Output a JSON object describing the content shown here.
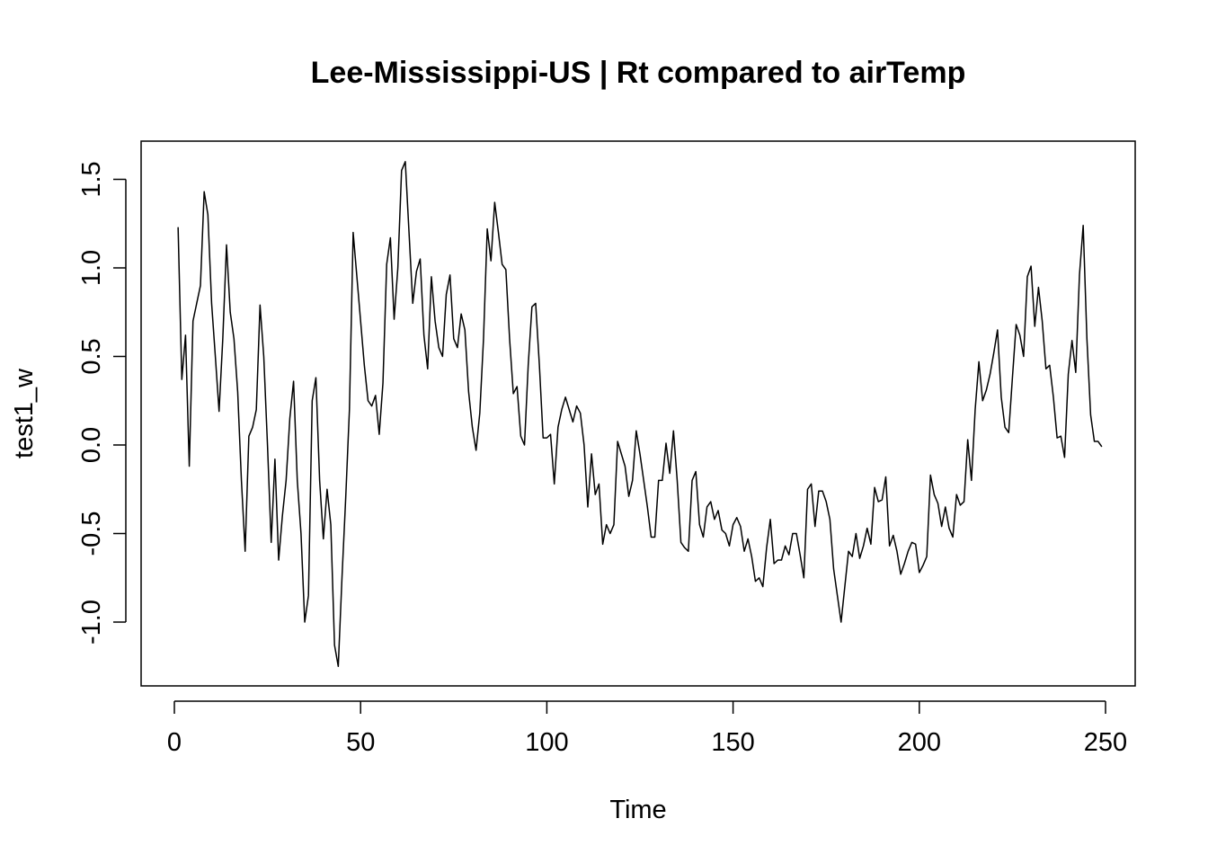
{
  "chart_data": {
    "type": "line",
    "title": "Lee-Mississippi-US | Rt compared to airTemp",
    "xlabel": "Time",
    "ylabel": "test1_w",
    "xlim": [
      1,
      248
    ],
    "ylim": [
      -1.25,
      1.6
    ],
    "xticks": [
      0,
      50,
      100,
      150,
      200,
      250
    ],
    "xtick_labels": [
      "0",
      "50",
      "100",
      "150",
      "200",
      "250"
    ],
    "yticks": [
      -1.0,
      -0.5,
      0.0,
      0.5,
      1.0,
      1.5
    ],
    "ytick_labels": [
      "-1.0",
      "-0.5",
      "0.0",
      "0.5",
      "1.0",
      "1.5"
    ],
    "grid": false,
    "legend": "none",
    "line_color": "#000000",
    "series": [
      {
        "x_start": 1,
        "x_step": 1,
        "values": [
          1.23,
          0.37,
          0.62,
          -0.12,
          0.7,
          0.8,
          0.9,
          1.43,
          1.3,
          0.8,
          0.5,
          0.19,
          0.6,
          1.13,
          0.75,
          0.6,
          0.3,
          -0.2,
          -0.6,
          0.05,
          0.1,
          0.2,
          0.79,
          0.5,
          0.0,
          -0.55,
          -0.08,
          -0.65,
          -0.4,
          -0.2,
          0.15,
          0.36,
          -0.2,
          -0.5,
          -1.0,
          -0.85,
          0.25,
          0.38,
          -0.2,
          -0.53,
          -0.25,
          -0.45,
          -1.13,
          -1.25,
          -0.75,
          -0.3,
          0.2,
          1.2,
          0.95,
          0.7,
          0.45,
          0.25,
          0.22,
          0.28,
          0.06,
          0.35,
          1.02,
          1.17,
          0.71,
          1.0,
          1.55,
          1.6,
          1.2,
          0.8,
          0.98,
          1.05,
          0.62,
          0.43,
          0.95,
          0.7,
          0.55,
          0.5,
          0.85,
          0.96,
          0.6,
          0.55,
          0.74,
          0.65,
          0.3,
          0.1,
          -0.03,
          0.18,
          0.6,
          1.22,
          1.04,
          1.37,
          1.2,
          1.02,
          0.99,
          0.6,
          0.29,
          0.33,
          0.05,
          0.0,
          0.45,
          0.78,
          0.8,
          0.45,
          0.04,
          0.04,
          0.06,
          -0.22,
          0.1,
          0.2,
          0.27,
          0.2,
          0.13,
          0.22,
          0.18,
          0.0,
          -0.35,
          -0.05,
          -0.28,
          -0.22,
          -0.56,
          -0.45,
          -0.5,
          -0.45,
          0.02,
          -0.05,
          -0.12,
          -0.29,
          -0.2,
          0.08,
          -0.05,
          -0.2,
          -0.35,
          -0.52,
          -0.52,
          -0.2,
          -0.2,
          0.01,
          -0.16,
          0.08,
          -0.2,
          -0.55,
          -0.58,
          -0.6,
          -0.2,
          -0.15,
          -0.45,
          -0.52,
          -0.35,
          -0.32,
          -0.42,
          -0.37,
          -0.48,
          -0.5,
          -0.57,
          -0.45,
          -0.41,
          -0.46,
          -0.6,
          -0.53,
          -0.63,
          -0.77,
          -0.75,
          -0.8,
          -0.58,
          -0.42,
          -0.67,
          -0.65,
          -0.65,
          -0.57,
          -0.62,
          -0.5,
          -0.5,
          -0.62,
          -0.75,
          -0.25,
          -0.22,
          -0.46,
          -0.26,
          -0.26,
          -0.32,
          -0.42,
          -0.7,
          -0.85,
          -1.0,
          -0.8,
          -0.6,
          -0.63,
          -0.5,
          -0.64,
          -0.57,
          -0.47,
          -0.56,
          -0.24,
          -0.32,
          -0.31,
          -0.18,
          -0.57,
          -0.51,
          -0.6,
          -0.73,
          -0.67,
          -0.6,
          -0.55,
          -0.56,
          -0.72,
          -0.68,
          -0.63,
          -0.17,
          -0.28,
          -0.33,
          -0.46,
          -0.35,
          -0.47,
          -0.52,
          -0.28,
          -0.34,
          -0.32,
          0.03,
          -0.2,
          0.2,
          0.47,
          0.25,
          0.31,
          0.4,
          0.52,
          0.65,
          0.27,
          0.1,
          0.07,
          0.38,
          0.68,
          0.62,
          0.5,
          0.95,
          1.01,
          0.67,
          0.89,
          0.7,
          0.43,
          0.45,
          0.27,
          0.04,
          0.05,
          -0.07,
          0.4,
          0.59,
          0.41,
          0.96,
          1.24,
          0.6,
          0.17,
          0.02,
          0.02,
          -0.01
        ]
      }
    ]
  }
}
